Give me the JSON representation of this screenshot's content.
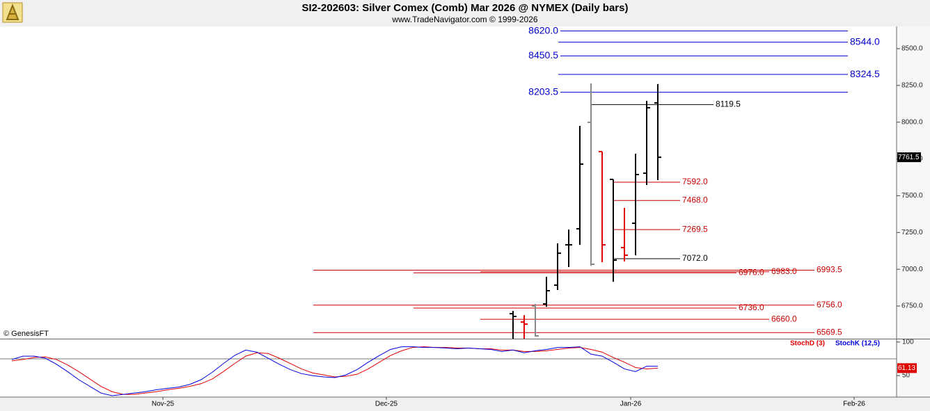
{
  "chart_data": [
    {
      "type": "ohlc",
      "title": "SI2-202603:  Silver Comex (Comb) Mar 2026 @ NYMEX  (Daily bars)",
      "subtitle": "www.TradeNavigator.com © 1999-2026",
      "watermark": "© GenesisFT",
      "x_labels": [
        "Nov-25",
        "Dec-25",
        "Jan-26",
        "Feb-26"
      ],
      "open": [
        6698,
        6641,
        6750,
        6764,
        6892,
        7166,
        7275,
        7999,
        7800,
        7611,
        7147,
        7313,
        7653,
        8131
      ],
      "high": [
        6717,
        6688,
        6764,
        6949,
        7176,
        7270,
        7975,
        8263,
        7800,
        7611,
        7417,
        7786,
        8145,
        8259
      ],
      "low": [
        6528,
        6528,
        6542,
        6745,
        6859,
        7015,
        7166,
        7024,
        7048,
        6915,
        7053,
        7095,
        7573,
        7606
      ],
      "close": [
        6679,
        6627,
        6547,
        6854,
        7109,
        7166,
        7715,
        7034,
        7166,
        7062,
        7095,
        7644,
        8098,
        7761.5
      ],
      "colors": [
        "#000000",
        "#e00000",
        "#888888",
        "#000000",
        "#000000",
        "#000000",
        "#000000",
        "#888888",
        "#e00000",
        "#000000",
        "#e00000",
        "#000000",
        "#000000",
        "#000000"
      ],
      "levels": [
        {
          "value": 8620,
          "label": "8620.0",
          "color": "#0000d0"
        },
        {
          "value": 8544,
          "label": "8544.0",
          "color": "#0000d0"
        },
        {
          "value": 8450.5,
          "label": "8450.5",
          "color": "#0000d0"
        },
        {
          "value": 8324.5,
          "label": "8324.5",
          "color": "#0000d0"
        },
        {
          "value": 8203.5,
          "label": "8203.5",
          "color": "#0000d0"
        },
        {
          "value": 8119.5,
          "label": "8119.5",
          "color": "#000000"
        },
        {
          "value": 7592,
          "label": "7592.0",
          "color": "#cc0000"
        },
        {
          "value": 7468,
          "label": "7468.0",
          "color": "#cc0000"
        },
        {
          "value": 7269.5,
          "label": "7269.5",
          "color": "#cc0000"
        },
        {
          "value": 7072,
          "label": "7072.0",
          "color": "#000000"
        },
        {
          "value": 6993.5,
          "label": "6993.5",
          "color": "#cc0000"
        },
        {
          "value": 6983,
          "label": "6983.0",
          "color": "#cc0000"
        },
        {
          "value": 6976,
          "label": "6976.0",
          "color": "#cc0000"
        },
        {
          "value": 6756,
          "label": "6756.0",
          "color": "#cc0000"
        },
        {
          "value": 6736,
          "label": "6736.0",
          "color": "#cc0000"
        },
        {
          "value": 6660,
          "label": "6660.0",
          "color": "#cc0000"
        },
        {
          "value": 6569.5,
          "label": "6569.5",
          "color": "#cc0000"
        }
      ],
      "ylim": [
        6528,
        8651
      ],
      "yticks": [
        {
          "value": 6750,
          "label": "6750.0"
        },
        {
          "value": 7000,
          "label": "7000.0"
        },
        {
          "value": 7250,
          "label": "7250.0"
        },
        {
          "value": 7500,
          "label": "7500.0"
        },
        {
          "value": 7750,
          "label": "7750.0"
        },
        {
          "value": 8000,
          "label": "8000.0"
        },
        {
          "value": 8250,
          "label": "8250.0"
        },
        {
          "value": 8500,
          "label": "8500.0"
        }
      ]
    },
    {
      "type": "line",
      "series": [
        {
          "name": "StochD (3)",
          "color": "#e00000",
          "values": [
            72,
            74,
            77,
            78,
            74,
            66,
            56,
            45,
            34,
            26,
            22,
            22,
            24,
            26,
            29,
            31,
            34,
            38,
            45,
            56,
            68,
            79,
            84,
            83,
            76,
            68,
            60,
            54,
            51,
            48,
            49,
            52,
            60,
            70,
            80,
            87,
            92,
            93,
            92,
            92,
            91,
            91,
            90,
            90,
            88,
            88,
            86,
            86,
            87,
            89,
            91,
            92,
            89,
            85,
            77,
            70,
            62,
            60,
            61.13
          ]
        },
        {
          "name": "StochK (12,5)",
          "color": "#0000e0",
          "values": [
            74,
            79,
            79,
            76,
            67,
            56,
            44,
            34,
            24,
            20,
            22,
            24,
            26,
            29,
            31,
            33,
            37,
            44,
            55,
            68,
            80,
            88,
            85,
            76,
            67,
            59,
            53,
            50,
            48,
            47,
            51,
            59,
            70,
            80,
            89,
            93,
            93,
            92,
            92,
            91,
            90,
            91,
            90,
            89,
            86,
            88,
            84,
            87,
            89,
            92,
            92,
            93,
            82,
            79,
            70,
            60,
            56,
            64,
            64
          ]
        }
      ],
      "reference_level": 75,
      "ylim": [
        19,
        104
      ],
      "yticks": [
        50,
        100
      ]
    }
  ]
}
